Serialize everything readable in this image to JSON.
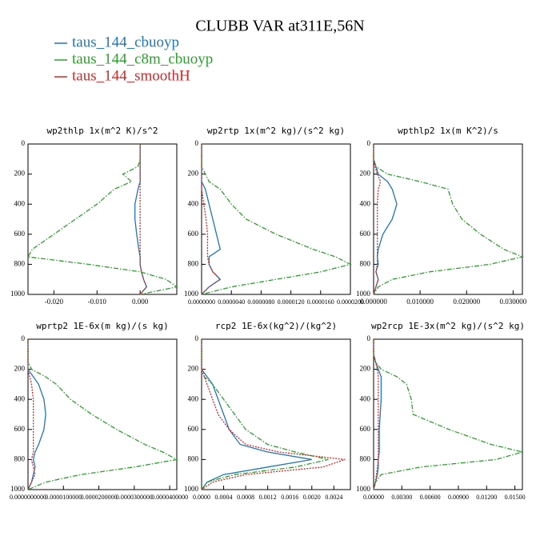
{
  "title": "CLUBB VAR at311E,56N",
  "chart_data": [
    {
      "type": "line",
      "title": "wp2thlp   1x(m^2 K)/s^2",
      "yreverse": true,
      "y": [
        0,
        100,
        150,
        200,
        250,
        300,
        400,
        500,
        600,
        700,
        750,
        800,
        850,
        900,
        950,
        1000
      ],
      "xlim": [
        -0.026,
        0.0085
      ],
      "xticks": [
        {
          "value": -0.02,
          "label": "-0.020"
        },
        {
          "value": -0.01,
          "label": "-0.010"
        },
        {
          "value": 0,
          "label": "0.000"
        }
      ],
      "ylim": [
        0,
        1000
      ],
      "yticks": [
        0,
        200,
        400,
        600,
        800,
        1000
      ],
      "series": [
        {
          "name": "taus_144_cbuoyp",
          "color": "#1f77b4",
          "linestyle": "solid",
          "values": [
            0,
            0,
            0,
            0,
            0,
            -0.0005,
            -0.0012,
            -0.0012,
            -0.0008,
            -0.0003,
            0,
            0,
            0.0003,
            0.0008,
            0.0015,
            0
          ]
        },
        {
          "name": "taus_144_c8m_cbuoyp",
          "color": "#2ca02c",
          "linestyle": "dashdot",
          "values": [
            0,
            0,
            -0.0005,
            -0.004,
            -0.002,
            -0.006,
            -0.01,
            -0.015,
            -0.02,
            -0.025,
            -0.026,
            -0.012,
            0,
            0.006,
            0.0085,
            0
          ]
        },
        {
          "name": "taus_144_smoothH",
          "color": "#d62728",
          "linestyle": "dotted",
          "values": [
            0,
            0,
            0,
            0,
            0,
            0,
            0,
            0,
            0,
            0,
            0,
            0,
            0.0003,
            0.0008,
            0.0015,
            0
          ]
        }
      ]
    },
    {
      "type": "line",
      "title": "wp2rtp   1x(m^2 kg)/(s^2 kg)",
      "yreverse": true,
      "y": [
        0,
        100,
        150,
        200,
        250,
        300,
        400,
        500,
        600,
        700,
        750,
        800,
        850,
        900,
        950,
        1000
      ],
      "xlim": [
        0,
        2e-05
      ],
      "xticks": [
        {
          "value": 0,
          "label": "0.0000000"
        },
        {
          "value": 4e-06,
          "label": "0.0000040"
        },
        {
          "value": 8e-06,
          "label": "0.0000080"
        },
        {
          "value": 1.2e-05,
          "label": "0.0000120"
        },
        {
          "value": 1.6e-05,
          "label": "0.0000160"
        },
        {
          "value": 2e-05,
          "label": "0.0000200"
        }
      ],
      "ylim": [
        0,
        1000
      ],
      "yticks": [
        0,
        200,
        400,
        600,
        800,
        1000
      ],
      "series": [
        {
          "name": "taus_144_cbuoyp",
          "color": "#1f77b4",
          "linestyle": "solid",
          "values": [
            0,
            0,
            0,
            0,
            0,
            5e-07,
            1e-06,
            1.5e-06,
            2e-06,
            2.5e-06,
            1e-06,
            1e-06,
            1.5e-06,
            2.5e-06,
            1e-06,
            0
          ]
        },
        {
          "name": "taus_144_c8m_cbuoyp",
          "color": "#2ca02c",
          "linestyle": "dashdot",
          "values": [
            0,
            0,
            0,
            5e-07,
            1e-06,
            2.5e-06,
            4e-06,
            6e-06,
            1e-05,
            1.5e-05,
            1.8e-05,
            2e-05,
            1.6e-05,
            1e-05,
            4e-06,
            0
          ]
        },
        {
          "name": "taus_144_smoothH",
          "color": "#d62728",
          "linestyle": "dotted",
          "values": [
            0,
            0,
            0,
            0,
            0,
            0,
            3e-07,
            6e-07,
            8e-07,
            8e-07,
            8e-07,
            1e-06,
            1.5e-06,
            2.5e-06,
            1e-06,
            0
          ]
        }
      ]
    },
    {
      "type": "line",
      "title": "wpthlp2   1x(m K^2)/s",
      "yreverse": true,
      "y": [
        0,
        100,
        150,
        200,
        250,
        300,
        400,
        500,
        600,
        700,
        750,
        800,
        850,
        900,
        950,
        1000
      ],
      "xlim": [
        0,
        0.032
      ],
      "xticks": [
        {
          "value": 0,
          "label": "0.000000"
        },
        {
          "value": 0.01,
          "label": "0.010000"
        },
        {
          "value": 0.02,
          "label": "0.020000"
        },
        {
          "value": 0.03,
          "label": "0.030000"
        }
      ],
      "ylim": [
        0,
        1000
      ],
      "yticks": [
        0,
        200,
        400,
        600,
        800,
        1000
      ],
      "series": [
        {
          "name": "taus_144_cbuoyp",
          "color": "#1f77b4",
          "linestyle": "solid",
          "values": [
            0,
            0,
            0.0005,
            0.001,
            0.003,
            0.004,
            0.005,
            0.004,
            0.002,
            0.001,
            0.0008,
            0.001,
            0.0005,
            0.001,
            0.0005,
            0
          ]
        },
        {
          "name": "taus_144_c8m_cbuoyp",
          "color": "#2ca02c",
          "linestyle": "dashdot",
          "values": [
            0,
            0,
            0.0005,
            0.003,
            0.01,
            0.016,
            0.017,
            0.019,
            0.023,
            0.028,
            0.032,
            0.025,
            0.012,
            0.004,
            0.001,
            0
          ]
        },
        {
          "name": "taus_144_smoothH",
          "color": "#d62728",
          "linestyle": "dotted",
          "values": [
            0,
            0,
            0.0003,
            0.0008,
            0.0015,
            0.001,
            0.0008,
            0.0008,
            0.0008,
            0.0008,
            0.0008,
            0.0008,
            0.0005,
            0.001,
            0.0005,
            0
          ]
        }
      ]
    },
    {
      "type": "line",
      "title": "wprtp2   1E-6x(m kg)/(s kg)",
      "yreverse": true,
      "y": [
        0,
        100,
        150,
        200,
        250,
        300,
        400,
        500,
        600,
        700,
        750,
        800,
        850,
        900,
        950,
        1000
      ],
      "xlim": [
        0,
        4.2e-05
      ],
      "xticks": [
        {
          "value": 0,
          "label": "0.0000000000"
        },
        {
          "value": 1e-05,
          "label": "0.0000100000"
        },
        {
          "value": 2e-05,
          "label": "0.0000200000"
        },
        {
          "value": 3e-05,
          "label": "0.0000300000"
        },
        {
          "value": 4e-05,
          "label": "0.0000400000"
        }
      ],
      "ylim": [
        0,
        1000
      ],
      "yticks": [
        0,
        200,
        400,
        600,
        800,
        1000
      ],
      "series": [
        {
          "name": "taus_144_cbuoyp",
          "color": "#1f77b4",
          "linestyle": "solid",
          "values": [
            0,
            0,
            0,
            0,
            1.5e-06,
            3e-06,
            4.5e-06,
            5e-06,
            4.5e-06,
            3e-06,
            2e-06,
            1.5e-06,
            2e-06,
            1.5e-06,
            1e-06,
            0
          ]
        },
        {
          "name": "taus_144_c8m_cbuoyp",
          "color": "#2ca02c",
          "linestyle": "dashdot",
          "values": [
            0,
            0,
            0,
            1e-06,
            5e-06,
            8e-06,
            1.2e-05,
            1.8e-05,
            2.5e-05,
            3.3e-05,
            3.8e-05,
            4.2e-05,
            3e-05,
            1.5e-05,
            5e-06,
            0
          ]
        },
        {
          "name": "taus_144_smoothH",
          "color": "#d62728",
          "linestyle": "dotted",
          "values": [
            0,
            0,
            0,
            0,
            5e-07,
            1e-06,
            1.5e-06,
            1.5e-06,
            1.5e-06,
            1.5e-06,
            1.5e-06,
            1e-06,
            1.5e-06,
            2e-06,
            1e-06,
            0
          ]
        }
      ]
    },
    {
      "type": "line",
      "title": "rcp2   1E-6x(kg^2)/(kg^2)",
      "yreverse": true,
      "y": [
        0,
        100,
        150,
        200,
        250,
        300,
        400,
        500,
        600,
        700,
        750,
        800,
        850,
        900,
        950,
        1000
      ],
      "xlim": [
        0,
        0.0027
      ],
      "xticks": [
        {
          "value": 0,
          "label": "0.0000"
        },
        {
          "value": 0.0004,
          "label": "0.0004"
        },
        {
          "value": 0.0008,
          "label": "0.0008"
        },
        {
          "value": 0.0012,
          "label": "0.0012"
        },
        {
          "value": 0.0016,
          "label": "0.0016"
        },
        {
          "value": 0.002,
          "label": "0.0020"
        },
        {
          "value": 0.0024,
          "label": "0.0024"
        }
      ],
      "ylim": [
        0,
        1000
      ],
      "yticks": [
        0,
        200,
        400,
        600,
        800,
        1000
      ],
      "series": [
        {
          "name": "taus_144_cbuoyp",
          "color": "#1f77b4",
          "linestyle": "solid",
          "values": [
            0,
            0,
            0,
            0,
            0.0001,
            0.0002,
            0.0003,
            0.0004,
            0.0005,
            0.0007,
            0.0012,
            0.002,
            0.0012,
            0.0004,
            0.0001,
            0
          ]
        },
        {
          "name": "taus_144_c8m_cbuoyp",
          "color": "#2ca02c",
          "linestyle": "dashdot",
          "values": [
            0,
            0,
            0,
            0,
            5e-05,
            0.0002,
            0.0004,
            0.0006,
            0.0008,
            0.0012,
            0.0017,
            0.0023,
            0.0017,
            0.0006,
            0.0001,
            0
          ]
        },
        {
          "name": "taus_144_smoothH",
          "color": "#d62728",
          "linestyle": "dotted",
          "values": [
            0,
            0,
            0,
            0,
            5e-05,
            0.0001,
            0.0002,
            0.0003,
            0.0005,
            0.0008,
            0.0014,
            0.0026,
            0.0022,
            0.0008,
            0.0002,
            0
          ]
        }
      ]
    },
    {
      "type": "line",
      "title": "wp2rcp   1E-3x(m^2 kg)/(s^2 kg)",
      "yreverse": true,
      "y": [
        0,
        100,
        150,
        200,
        250,
        300,
        400,
        500,
        600,
        700,
        750,
        800,
        850,
        900,
        950,
        1000
      ],
      "xlim": [
        0,
        0.0158
      ],
      "xticks": [
        {
          "value": 0,
          "label": "0.00000"
        },
        {
          "value": 0.003,
          "label": "0.00300"
        },
        {
          "value": 0.006,
          "label": "0.00600"
        },
        {
          "value": 0.009,
          "label": "0.00900"
        },
        {
          "value": 0.012,
          "label": "0.01200"
        },
        {
          "value": 0.015,
          "label": "0.01500"
        }
      ],
      "ylim": [
        0,
        1000
      ],
      "yticks": [
        0,
        200,
        400,
        600,
        800,
        1000
      ],
      "series": [
        {
          "name": "taus_144_cbuoyp",
          "color": "#1f77b4",
          "linestyle": "solid",
          "values": [
            0,
            0,
            0.0002,
            0.0005,
            0.0008,
            0.0008,
            0.0008,
            0.0007,
            0.0006,
            0.0006,
            0.0006,
            0.0005,
            0.0005,
            0.0004,
            0.0002,
            0
          ]
        },
        {
          "name": "taus_144_c8m_cbuoyp",
          "color": "#2ca02c",
          "linestyle": "dashdot",
          "values": [
            0,
            0,
            0.0002,
            0.0008,
            0.0025,
            0.0035,
            0.004,
            0.0042,
            0.008,
            0.0125,
            0.0158,
            0.013,
            0.005,
            0.0008,
            0.0002,
            0
          ]
        },
        {
          "name": "taus_144_smoothH",
          "color": "#d62728",
          "linestyle": "dotted",
          "values": [
            0,
            0,
            0.0002,
            0.0004,
            0.0005,
            0.0005,
            0.0005,
            0.0005,
            0.0005,
            0.0005,
            0.0005,
            0.0005,
            0.0004,
            0.0003,
            0.0002,
            0
          ]
        }
      ]
    }
  ]
}
